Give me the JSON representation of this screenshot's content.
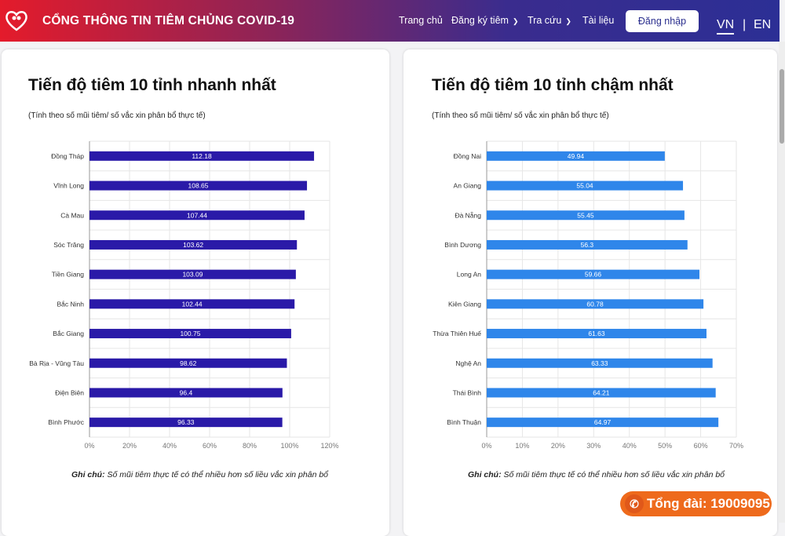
{
  "header": {
    "title": "CỔNG THÔNG TIN TIÊM CHỦNG COVID-19",
    "nav": [
      {
        "label": "Trang chủ"
      },
      {
        "label": "Đăng ký tiêm",
        "dropdown": true
      },
      {
        "label": "Tra cứu",
        "dropdown": true
      },
      {
        "label": "Tài liệu"
      }
    ],
    "login_label": "Đăng nhập",
    "lang_vn": "VN",
    "lang_sep": "|",
    "lang_en": "EN"
  },
  "colors": {
    "fast_bar": "#2a1aa8",
    "slow_bar": "#2f86ea",
    "hotline": "#ee6a1c"
  },
  "note_label": "Ghi chú:",
  "note_text": "Số mũi tiêm thực tế có thể nhiều hơn số liều vắc xin phân bổ",
  "hotline": "Tổng đài: 19009095",
  "chart_data": [
    {
      "type": "bar",
      "orientation": "horizontal",
      "title": "Tiến độ tiêm 10 tỉnh nhanh nhất",
      "subtitle": "(Tính theo số mũi tiêm/ số vắc xin phân bổ thực tế)",
      "categories": [
        "Đồng Tháp",
        "Vĩnh Long",
        "Cà Mau",
        "Sóc Trăng",
        "Tiền Giang",
        "Bắc Ninh",
        "Bắc Giang",
        "Bà Rịa - Vũng Tàu",
        "Điện Biên",
        "Bình Phước"
      ],
      "values": [
        112.18,
        108.65,
        107.44,
        103.62,
        103.09,
        102.44,
        100.75,
        98.62,
        96.4,
        96.33
      ],
      "xlim": [
        0,
        120
      ],
      "xticks": [
        "0%",
        "20%",
        "40%",
        "60%",
        "80%",
        "100%",
        "120%"
      ],
      "grid": true
    },
    {
      "type": "bar",
      "orientation": "horizontal",
      "title": "Tiến độ tiêm 10 tỉnh chậm nhất",
      "subtitle": "(Tính theo số mũi tiêm/ số vắc xin phân bổ thực tế)",
      "categories": [
        "Đồng Nai",
        "An Giang",
        "Đà Nẵng",
        "Bình Dương",
        "Long An",
        "Kiên Giang",
        "Thừa Thiên Huế",
        "Nghệ An",
        "Thái Bình",
        "Bình Thuận"
      ],
      "values": [
        49.94,
        55.04,
        55.45,
        56.3,
        59.66,
        60.78,
        61.63,
        63.33,
        64.21,
        64.97
      ],
      "xlim": [
        0,
        70
      ],
      "xticks": [
        "0%",
        "10%",
        "20%",
        "30%",
        "40%",
        "50%",
        "60%",
        "70%"
      ],
      "grid": true
    }
  ]
}
